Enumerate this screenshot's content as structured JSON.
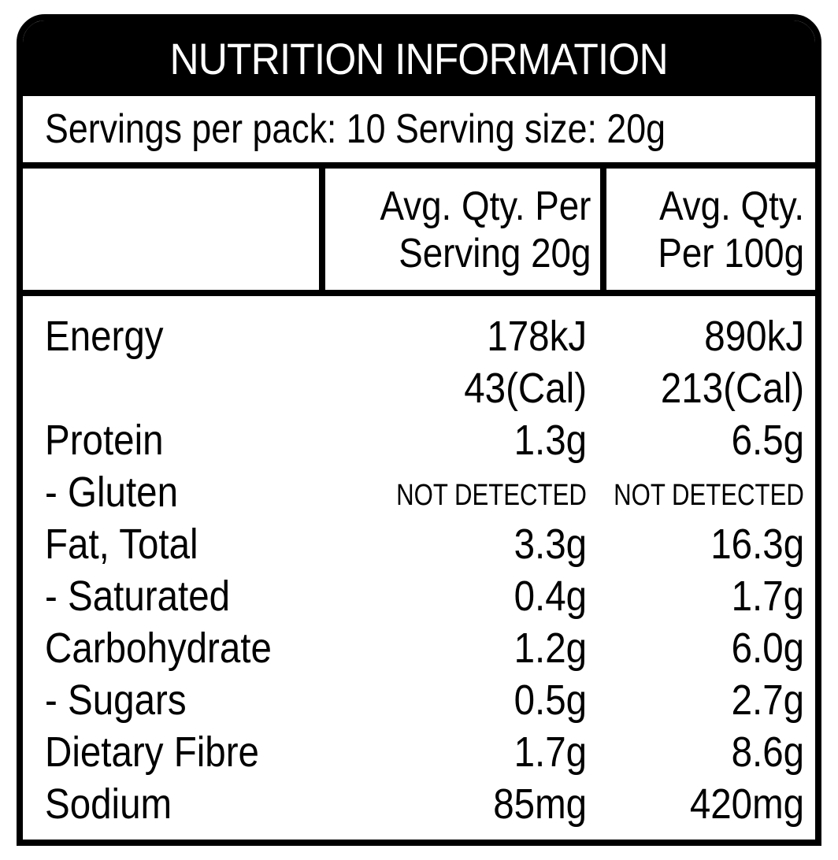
{
  "title": "NUTRITION INFORMATION",
  "servings": "Servings per pack: 10 Serving size: 20g",
  "columns": {
    "per_serving_line1": "Avg. Qty. Per",
    "per_serving_line2": "Serving 20g",
    "per_100_line1": "Avg. Qty.",
    "per_100_line2": "Per 100g"
  },
  "rows": [
    {
      "label": "Energy",
      "serving": "178kJ",
      "per100": "890kJ"
    },
    {
      "label": "",
      "serving": "43(Cal)",
      "per100": "213(Cal)"
    },
    {
      "label": "Protein",
      "serving": "1.3g",
      "per100": "6.5g"
    },
    {
      "label": "- Gluten",
      "serving": "NOT DETECTED",
      "per100": "NOT DETECTED"
    },
    {
      "label": "Fat, Total",
      "serving": "3.3g",
      "per100": "16.3g"
    },
    {
      "label": "- Saturated",
      "serving": "0.4g",
      "per100": "1.7g"
    },
    {
      "label": "Carbohydrate",
      "serving": "1.2g",
      "per100": "6.0g"
    },
    {
      "label": "- Sugars",
      "serving": "0.5g",
      "per100": "2.7g"
    },
    {
      "label": "Dietary Fibre",
      "serving": "1.7g",
      "per100": "8.6g"
    },
    {
      "label": "Sodium",
      "serving": "85mg",
      "per100": "420mg"
    }
  ]
}
